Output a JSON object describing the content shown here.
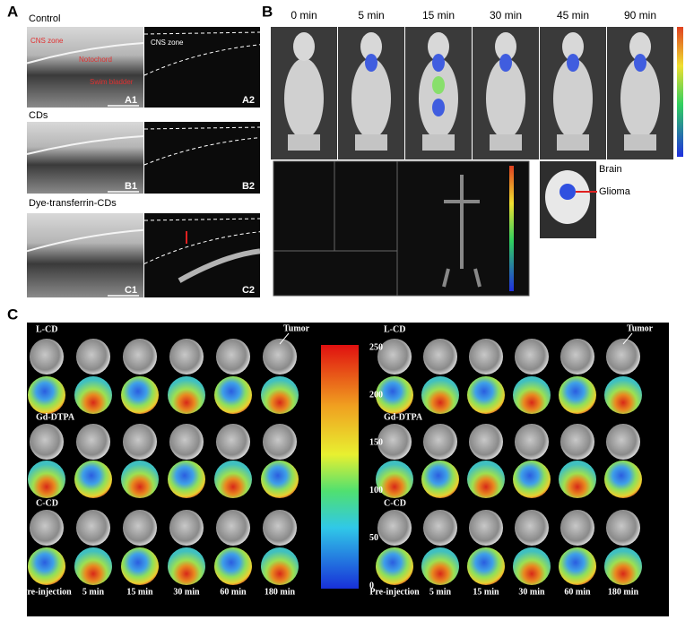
{
  "panel_a": {
    "label": "A",
    "rows": [
      {
        "title": "Control",
        "annotations": [
          "CNS zone",
          "Notochord",
          "Swim bladder"
        ],
        "left_label": "A1",
        "right_note": "CNS zone",
        "right_label": "A2"
      },
      {
        "title": "CDs",
        "left_label": "B1",
        "right_label": "B2"
      },
      {
        "title": "Dye-transferrin-CDs",
        "left_label": "C1",
        "right_label": "C2"
      }
    ]
  },
  "panel_b": {
    "label": "B",
    "timepoints": [
      "0 min",
      "5 min",
      "15 min",
      "30 min",
      "45 min",
      "90 min"
    ],
    "brain_labels": [
      "Brain",
      "Glioma"
    ]
  },
  "panel_c": {
    "label": "C",
    "left": {
      "groups": [
        "L-CD",
        "Gd-DTPA",
        "C-CD"
      ],
      "tumor": "Tumor",
      "timepoints": [
        "Pre-injection",
        "5 min",
        "15 min",
        "30 min",
        "60 min",
        "180 min"
      ]
    },
    "right": {
      "groups": [
        "L-CD",
        "Gd-DTPA",
        "C-CD"
      ],
      "tumor": "Tumor",
      "timepoints": [
        "Pre-injection",
        "5 min",
        "15 min",
        "30 min",
        "60 min",
        "180 min"
      ]
    },
    "colorbar_ticks": [
      250,
      200,
      150,
      100,
      50,
      0
    ]
  }
}
